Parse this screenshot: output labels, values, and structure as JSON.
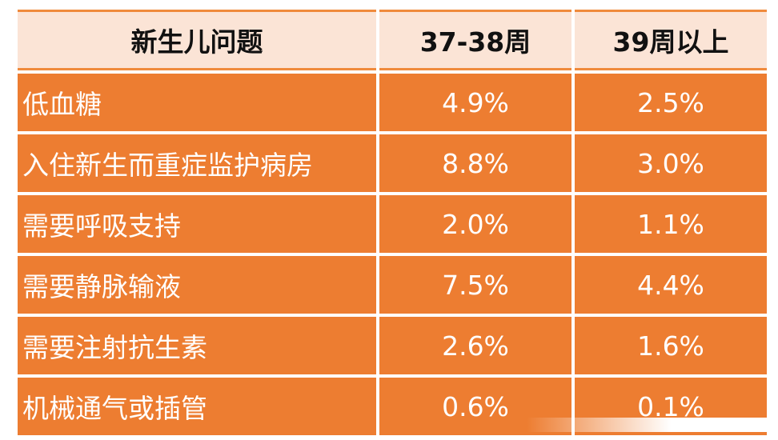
{
  "table": {
    "headers": [
      "新生儿问题",
      "37-38周",
      "39周以上"
    ],
    "rows": [
      {
        "label": "低血糖",
        "v1": "4.9%",
        "v2": "2.5%"
      },
      {
        "label": "入住新生而重症监护病房",
        "v1": "8.8%",
        "v2": "3.0%"
      },
      {
        "label": "需要呼吸支持",
        "v1": "2.0%",
        "v2": "1.1%"
      },
      {
        "label": "需要静脉输液",
        "v1": "7.5%",
        "v2": "4.4%"
      },
      {
        "label": "需要注射抗生素",
        "v1": "2.6%",
        "v2": "1.6%"
      },
      {
        "label": "机械通气或插管",
        "v1": "0.6%",
        "v2": "0.1%"
      }
    ]
  },
  "colors": {
    "header_bg": "#fbe4d6",
    "row_bg": "#ed7d31",
    "row_text": "#ffffff",
    "accent_line": "#f08a3c"
  }
}
